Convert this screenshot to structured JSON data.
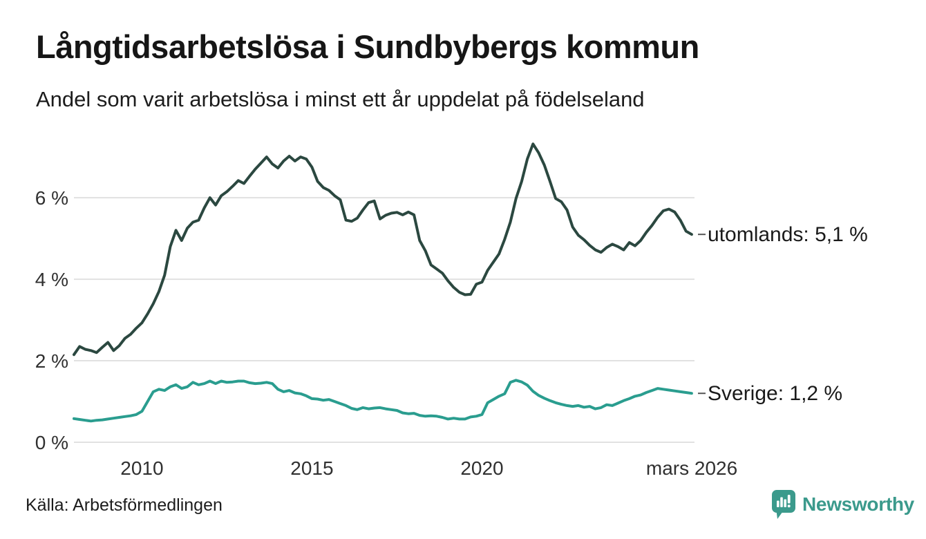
{
  "header": {
    "title": "Långtidsarbetslösa i Sundbybergs kommun",
    "subtitle": "Andel som varit arbetslösa i minst ett år uppdelat på födelseland"
  },
  "footer": {
    "source": "Källa: Arbetsförmedlingen",
    "brand": "Newsworthy",
    "brand_color": "#3B9A8C",
    "logo_icon": "bar-chart-speech-bubble-icon"
  },
  "chart_data": {
    "type": "line",
    "title": "Långtidsarbetslösa i Sundbybergs kommun",
    "subtitle": "Andel som varit arbetslösa i minst ett år uppdelat på födelseland",
    "xlabel": "",
    "ylabel": "",
    "xlim": [
      2008.0,
      2026.25
    ],
    "ylim": [
      0,
      7.46
    ],
    "grid": true,
    "grid_color": "#E1E1E1",
    "tick_color": "#303030",
    "label_color": "#1A1A1A",
    "x_start": 2008.0,
    "x_step": 0.166667,
    "y_ticks": [
      {
        "value": 0,
        "label": "0 %"
      },
      {
        "value": 2,
        "label": "2 %"
      },
      {
        "value": 4,
        "label": "4 %"
      },
      {
        "value": 6,
        "label": "6 %"
      }
    ],
    "x_ticks": [
      {
        "value": 2010.0,
        "label": "2010"
      },
      {
        "value": 2015.0,
        "label": "2015"
      },
      {
        "value": 2020.0,
        "label": "2020"
      },
      {
        "value": 2026.17,
        "label": "mars 2026"
      }
    ],
    "legend_position": "end-of-line-labels",
    "series": [
      {
        "name": "utomlands",
        "end_label": "utomlands: 5,1 %",
        "end_value_label": "5,1 %",
        "color": "#2B4840",
        "values": [
          2.15,
          2.35,
          2.28,
          2.25,
          2.2,
          2.33,
          2.45,
          2.25,
          2.37,
          2.55,
          2.65,
          2.8,
          2.93,
          3.15,
          3.4,
          3.7,
          4.1,
          4.8,
          5.2,
          4.95,
          5.25,
          5.4,
          5.45,
          5.75,
          6.0,
          5.82,
          6.05,
          6.15,
          6.28,
          6.42,
          6.35,
          6.53,
          6.7,
          6.85,
          7.0,
          6.83,
          6.73,
          6.9,
          7.02,
          6.9,
          7.0,
          6.95,
          6.75,
          6.4,
          6.25,
          6.18,
          6.05,
          5.95,
          5.45,
          5.42,
          5.5,
          5.7,
          5.88,
          5.92,
          5.48,
          5.57,
          5.62,
          5.64,
          5.58,
          5.65,
          5.58,
          4.95,
          4.7,
          4.35,
          4.25,
          4.15,
          3.96,
          3.8,
          3.68,
          3.62,
          3.63,
          3.88,
          3.93,
          4.22,
          4.42,
          4.62,
          4.98,
          5.4,
          5.98,
          6.4,
          6.95,
          7.32,
          7.1,
          6.8,
          6.4,
          5.98,
          5.9,
          5.7,
          5.28,
          5.08,
          4.97,
          4.83,
          4.72,
          4.66,
          4.78,
          4.86,
          4.8,
          4.72,
          4.9,
          4.82,
          4.95,
          5.15,
          5.32,
          5.52,
          5.68,
          5.72,
          5.65,
          5.45,
          5.18,
          5.1
        ]
      },
      {
        "name": "Sverige",
        "end_label": "Sverige: 1,2 %",
        "end_value_label": "1,2 %",
        "color": "#2A9D8F",
        "values": [
          0.58,
          0.56,
          0.54,
          0.52,
          0.54,
          0.55,
          0.57,
          0.59,
          0.61,
          0.63,
          0.65,
          0.68,
          0.76,
          1.0,
          1.24,
          1.3,
          1.27,
          1.36,
          1.41,
          1.32,
          1.36,
          1.47,
          1.41,
          1.44,
          1.5,
          1.44,
          1.5,
          1.47,
          1.48,
          1.5,
          1.5,
          1.46,
          1.44,
          1.45,
          1.47,
          1.44,
          1.3,
          1.24,
          1.27,
          1.21,
          1.19,
          1.14,
          1.07,
          1.06,
          1.03,
          1.05,
          1.0,
          0.95,
          0.9,
          0.83,
          0.8,
          0.85,
          0.82,
          0.84,
          0.85,
          0.82,
          0.8,
          0.78,
          0.72,
          0.7,
          0.71,
          0.66,
          0.64,
          0.65,
          0.64,
          0.61,
          0.57,
          0.59,
          0.57,
          0.57,
          0.62,
          0.64,
          0.68,
          0.97,
          1.05,
          1.13,
          1.19,
          1.47,
          1.52,
          1.48,
          1.4,
          1.25,
          1.15,
          1.08,
          1.02,
          0.97,
          0.93,
          0.9,
          0.88,
          0.9,
          0.86,
          0.88,
          0.82,
          0.85,
          0.92,
          0.9,
          0.96,
          1.02,
          1.07,
          1.13,
          1.16,
          1.22,
          1.27,
          1.32,
          1.3,
          1.28,
          1.26,
          1.24,
          1.22,
          1.2
        ]
      }
    ]
  }
}
